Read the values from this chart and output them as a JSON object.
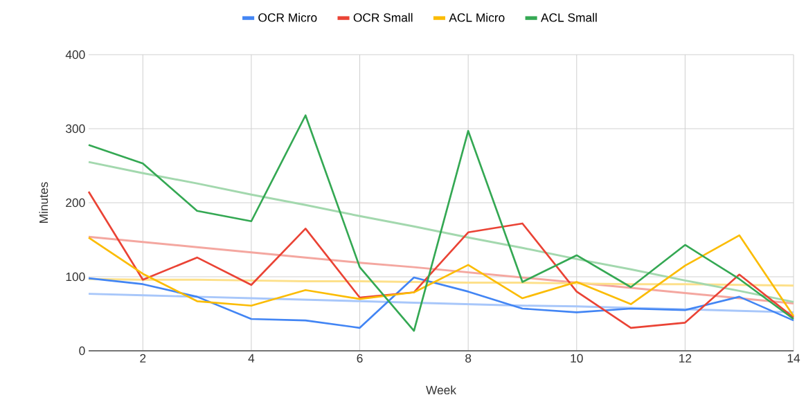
{
  "chart_data": {
    "type": "line",
    "xlabel": "Week",
    "ylabel": "Minutes",
    "x": [
      1,
      2,
      3,
      4,
      5,
      6,
      7,
      8,
      9,
      10,
      11,
      12,
      13,
      14
    ],
    "xlim": [
      1,
      14
    ],
    "xticks": [
      2,
      4,
      6,
      8,
      10,
      12,
      14
    ],
    "ylim": [
      0,
      400
    ],
    "yticks": [
      0,
      100,
      200,
      300,
      400
    ],
    "grid": true,
    "legend": "top",
    "marker": "none",
    "line_style": "solid",
    "series": [
      {
        "name": "OCR Micro",
        "color": "#4285f4",
        "values": [
          98,
          90,
          73,
          43,
          41,
          31,
          99,
          80,
          57,
          52,
          57,
          55,
          73,
          41
        ]
      },
      {
        "name": "OCR Small",
        "color": "#ea4335",
        "values": [
          215,
          96,
          126,
          89,
          165,
          72,
          79,
          160,
          172,
          80,
          31,
          38,
          103,
          45
        ]
      },
      {
        "name": "ACL Micro",
        "color": "#fbbc04",
        "values": [
          153,
          104,
          67,
          61,
          82,
          70,
          79,
          116,
          71,
          93,
          63,
          115,
          156,
          47
        ]
      },
      {
        "name": "ACL Small",
        "color": "#34a853",
        "values": [
          278,
          253,
          189,
          175,
          318,
          113,
          27,
          297,
          93,
          129,
          86,
          143,
          97,
          43
        ]
      },
      {
        "type": "line",
        "color": "#a8c7fa",
        "values": [
          77,
          75,
          73,
          71,
          69,
          67,
          65,
          63,
          61,
          60,
          58,
          56,
          54,
          52
        ]
      },
      {
        "type": "line",
        "color": "#f4a7a0",
        "values": [
          154,
          147,
          140,
          133,
          126,
          119,
          113,
          106,
          99,
          92,
          85,
          78,
          71,
          64
        ]
      },
      {
        "type": "line",
        "color": "#fde08a",
        "values": [
          97,
          96,
          96,
          95,
          94,
          94,
          93,
          92,
          92,
          91,
          90,
          90,
          89,
          88
        ]
      },
      {
        "type": "line",
        "color": "#a3d8ae",
        "values": [
          255,
          240,
          226,
          211,
          197,
          182,
          168,
          153,
          139,
          124,
          110,
          95,
          81,
          66
        ]
      }
    ]
  }
}
